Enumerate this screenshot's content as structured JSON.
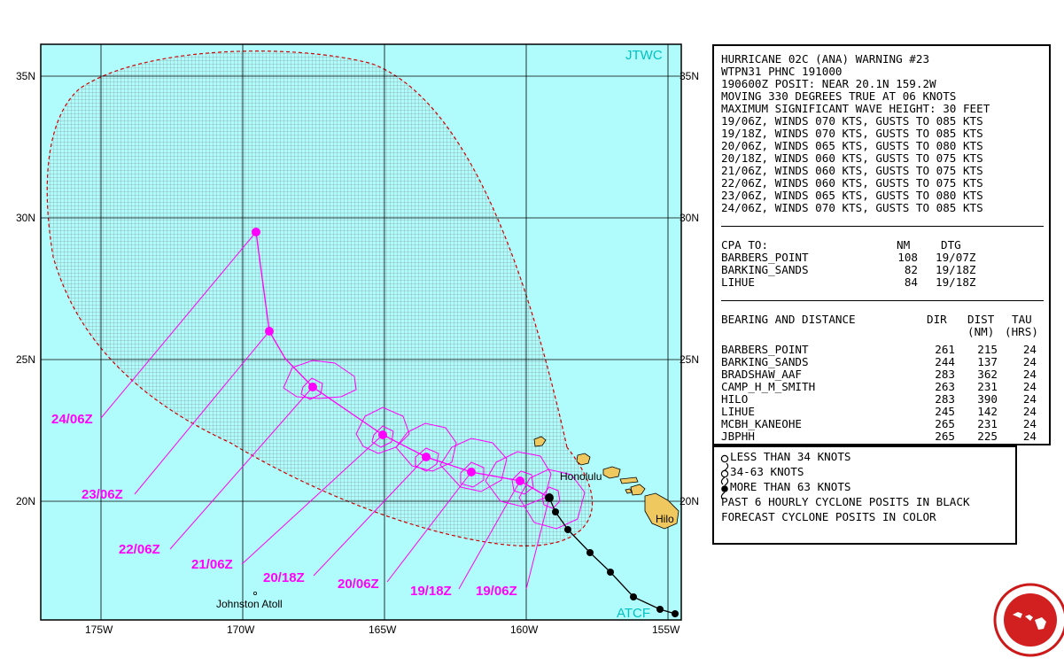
{
  "map": {
    "labels": {
      "jtwc": "JTWC",
      "atcf": "ATCF",
      "honolulu": "Honolulu",
      "hilo": "Hilo",
      "johnston": "Johnston Atoll"
    },
    "lat_left": [
      "35N",
      "30N",
      "25N",
      "20N"
    ],
    "lat_right": [
      "35N",
      "30N",
      "25N",
      "20N"
    ],
    "lon_bottom": [
      "175W",
      "170W",
      "165W",
      "160W",
      "155W"
    ],
    "forecast_tags": [
      "24/06Z",
      "23/06Z",
      "22/06Z",
      "21/06Z",
      "20/18Z",
      "20/06Z",
      "19/18Z",
      "19/06Z"
    ],
    "colors": {
      "ocean": "#b0fcfc",
      "forecast": "#ff00ff",
      "past": "#000000",
      "cone": "#d00000",
      "land": "#f0c860",
      "jtwc": "#00c0c0"
    }
  },
  "warning": {
    "lines": [
      "HURRICANE 02C (ANA) WARNING #23",
      "WTPN31 PHNC 191000",
      "190600Z POSIT: NEAR 20.1N 159.2W",
      "MOVING 330 DEGREES TRUE AT 06 KNOTS",
      "MAXIMUM SIGNIFICANT WAVE HEIGHT: 30 FEET",
      "19/06Z, WINDS 070 KTS, GUSTS TO 085 KTS",
      "19/18Z, WINDS 070 KTS, GUSTS TO 085 KTS",
      "20/06Z, WINDS 065 KTS, GUSTS TO 080 KTS",
      "20/18Z, WINDS 060 KTS, GUSTS TO 075 KTS",
      "21/06Z, WINDS 060 KTS, GUSTS TO 075 KTS",
      "22/06Z, WINDS 060 KTS, GUSTS TO 075 KTS",
      "23/06Z, WINDS 065 KTS, GUSTS TO 080 KTS",
      "24/06Z, WINDS 070 KTS, GUSTS TO 085 KTS"
    ],
    "cpa": {
      "headers": [
        "CPA TO:",
        "NM",
        "DTG"
      ],
      "rows": [
        [
          "BARBERS_POINT",
          "108",
          "19/07Z"
        ],
        [
          "BARKING_SANDS",
          "82",
          "19/18Z"
        ],
        [
          "LIHUE",
          "84",
          "19/18Z"
        ]
      ]
    },
    "bearing": {
      "headers": [
        "BEARING AND DISTANCE",
        "DIR",
        "DIST",
        "TAU"
      ],
      "subheaders": [
        "(NM)",
        "(HRS)"
      ],
      "rows": [
        [
          "BARBERS_POINT",
          "261",
          "215",
          "24"
        ],
        [
          "BARKING_SANDS",
          "244",
          "137",
          "24"
        ],
        [
          "BRADSHAW_AAF",
          "283",
          "362",
          "24"
        ],
        [
          "CAMP_H_M_SMITH",
          "263",
          "231",
          "24"
        ],
        [
          "HILO",
          "283",
          "390",
          "24"
        ],
        [
          "LIHUE",
          "245",
          "142",
          "24"
        ],
        [
          "MCBH_KANEOHE",
          "265",
          "231",
          "24"
        ],
        [
          "JBPHH",
          "265",
          "225",
          "24"
        ]
      ]
    }
  },
  "legend": {
    "lines": [
      "LESS THAN 34 KNOTS",
      "34-63 KNOTS",
      "MORE THAN 63 KNOTS",
      "PAST 6 HOURLY CYCLONE POSITS IN BLACK",
      "FORECAST CYCLONE POSITS IN COLOR"
    ]
  }
}
